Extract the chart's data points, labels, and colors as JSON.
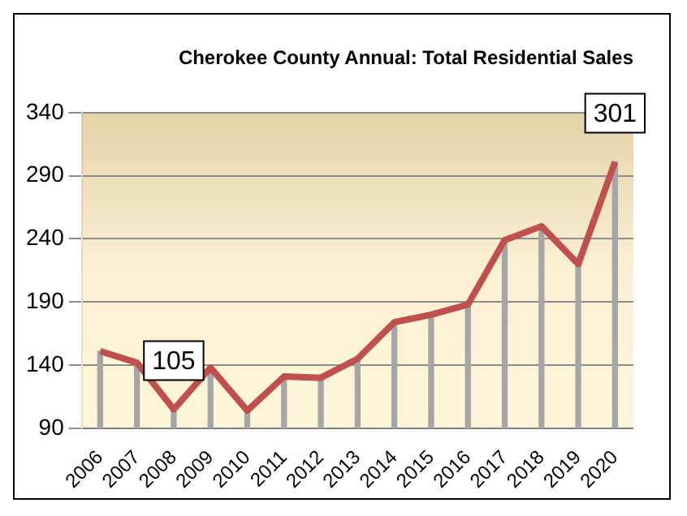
{
  "chart_data": {
    "type": "line",
    "title": "Cherokee County Annual: Total Residential Sales",
    "categories": [
      "2006",
      "2007",
      "2008",
      "2009",
      "2010",
      "2011",
      "2012",
      "2013",
      "2014",
      "2015",
      "2016",
      "2017",
      "2018",
      "2019",
      "2020"
    ],
    "series": [
      {
        "color": "#c0504d",
        "values": [
          151,
          142,
          105,
          138,
          104,
          131,
          130,
          145,
          174,
          180,
          188,
          239,
          250,
          220,
          301
        ]
      },
      {
        "type": "bar",
        "color": "#a6a6a6",
        "values": [
          151,
          142,
          105,
          138,
          104,
          131,
          130,
          145,
          174,
          180,
          188,
          239,
          250,
          220,
          301
        ]
      }
    ],
    "ylim": [
      90,
      340
    ],
    "yticks": [
      90,
      140,
      190,
      240,
      290,
      340
    ],
    "grid": "y",
    "legend": false,
    "marker": "none",
    "line_style": "solid",
    "annotations": [
      {
        "text": "105",
        "x": "2008",
        "y": 105
      },
      {
        "text": "301",
        "x": "2020",
        "y": 301
      }
    ]
  }
}
